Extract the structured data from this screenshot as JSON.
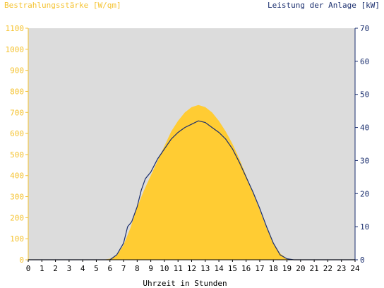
{
  "chart_data": {
    "type": "area",
    "ylabel_left": "Bestrahlungsstärke [W/qm]",
    "ylabel_right": "Leistung der Anlage [kW]",
    "xlabel": "Uhrzeit in Stunden",
    "x_ticks": [
      "0",
      "1",
      "2",
      "3",
      "4",
      "5",
      "6",
      "7",
      "8",
      "9",
      "10",
      "11",
      "12",
      "13",
      "14",
      "15",
      "16",
      "17",
      "18",
      "19",
      "20",
      "21",
      "22",
      "23",
      "24"
    ],
    "y_left_ticks": [
      "0",
      "100",
      "200",
      "300",
      "400",
      "500",
      "600",
      "700",
      "800",
      "900",
      "1000",
      "1100"
    ],
    "y_right_ticks": [
      "0",
      "10",
      "20",
      "30",
      "40",
      "50",
      "60",
      "70"
    ],
    "xlim": [
      0,
      24
    ],
    "ylim_left": [
      0,
      1100
    ],
    "ylim_right": [
      0,
      70
    ],
    "grid": false,
    "colors": {
      "plot_background": "#dcdcdc",
      "irradiance_fill": "#ffcc33",
      "power_line": "#1a2e6e",
      "left_axis": "#f5c331",
      "right_axis": "#1a2e6e"
    },
    "series": [
      {
        "axis": "left",
        "style": "area",
        "x": [
          0,
          5.5,
          6.0,
          6.5,
          7.0,
          7.5,
          8.0,
          8.5,
          9.0,
          9.5,
          10.0,
          10.5,
          11.0,
          11.5,
          12.0,
          12.5,
          13.0,
          13.5,
          14.0,
          14.5,
          15.0,
          15.5,
          16.0,
          16.5,
          17.0,
          17.5,
          18.0,
          18.5,
          19.0,
          19.5,
          24
        ],
        "values": [
          0,
          0,
          5,
          20,
          70,
          150,
          250,
          330,
          400,
          470,
          540,
          610,
          660,
          700,
          725,
          735,
          725,
          700,
          660,
          610,
          550,
          480,
          400,
          320,
          235,
          150,
          80,
          30,
          5,
          0,
          0
        ]
      },
      {
        "axis": "right",
        "style": "line",
        "x": [
          0,
          6.0,
          6.5,
          7.0,
          7.3,
          7.6,
          8.0,
          8.3,
          8.6,
          9.0,
          9.5,
          10.0,
          10.5,
          11.0,
          11.5,
          12.0,
          12.5,
          13.0,
          13.5,
          14.0,
          14.5,
          15.0,
          15.5,
          16.0,
          16.5,
          17.0,
          17.5,
          18.0,
          18.5,
          19.0,
          19.5,
          24
        ],
        "values": [
          0,
          0,
          1.5,
          5,
          10,
          11.5,
          16,
          21,
          24.5,
          26.5,
          30.5,
          33.5,
          36.5,
          38.5,
          40,
          41,
          42,
          41.5,
          40,
          38.5,
          36.5,
          33.5,
          29.5,
          25,
          20.5,
          15.5,
          10,
          5,
          1.5,
          0.3,
          0,
          0
        ]
      }
    ]
  }
}
